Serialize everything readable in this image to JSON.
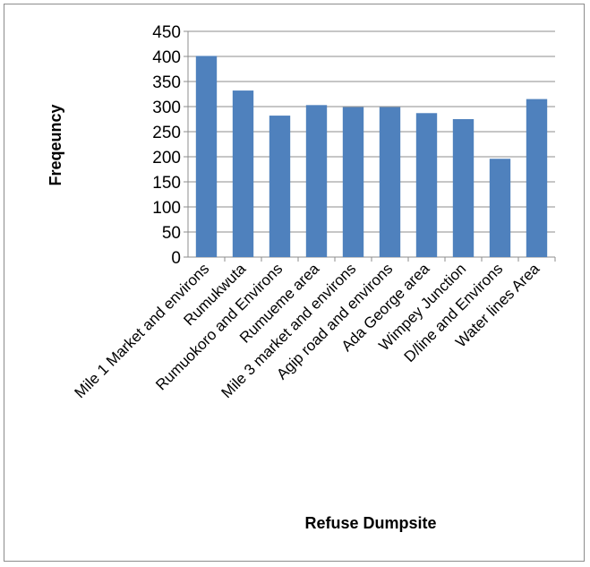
{
  "chart_data": {
    "type": "bar",
    "title": "",
    "xlabel": "Refuse Dumpsite",
    "ylabel": "Freqeuncy",
    "ylim": [
      0,
      450
    ],
    "ytick_step": 50,
    "yticks": [
      "0",
      "50",
      "100",
      "150",
      "200",
      "250",
      "300",
      "350",
      "400",
      "450"
    ],
    "grid": true,
    "legend": "none",
    "bar_color": "#4f81bd",
    "categories": [
      "Mile 1 Market and environs",
      "Rumukwuta",
      "Rumuokoro and Environs",
      "Rumueme area",
      "Mile 3 market and environs",
      "Agip road and environs",
      "Ada George area",
      "Wimpey Junction",
      "D/line and Environs",
      "Water lines Area"
    ],
    "values": [
      401,
      332,
      282,
      303,
      299,
      299,
      287,
      275,
      196,
      315
    ]
  }
}
